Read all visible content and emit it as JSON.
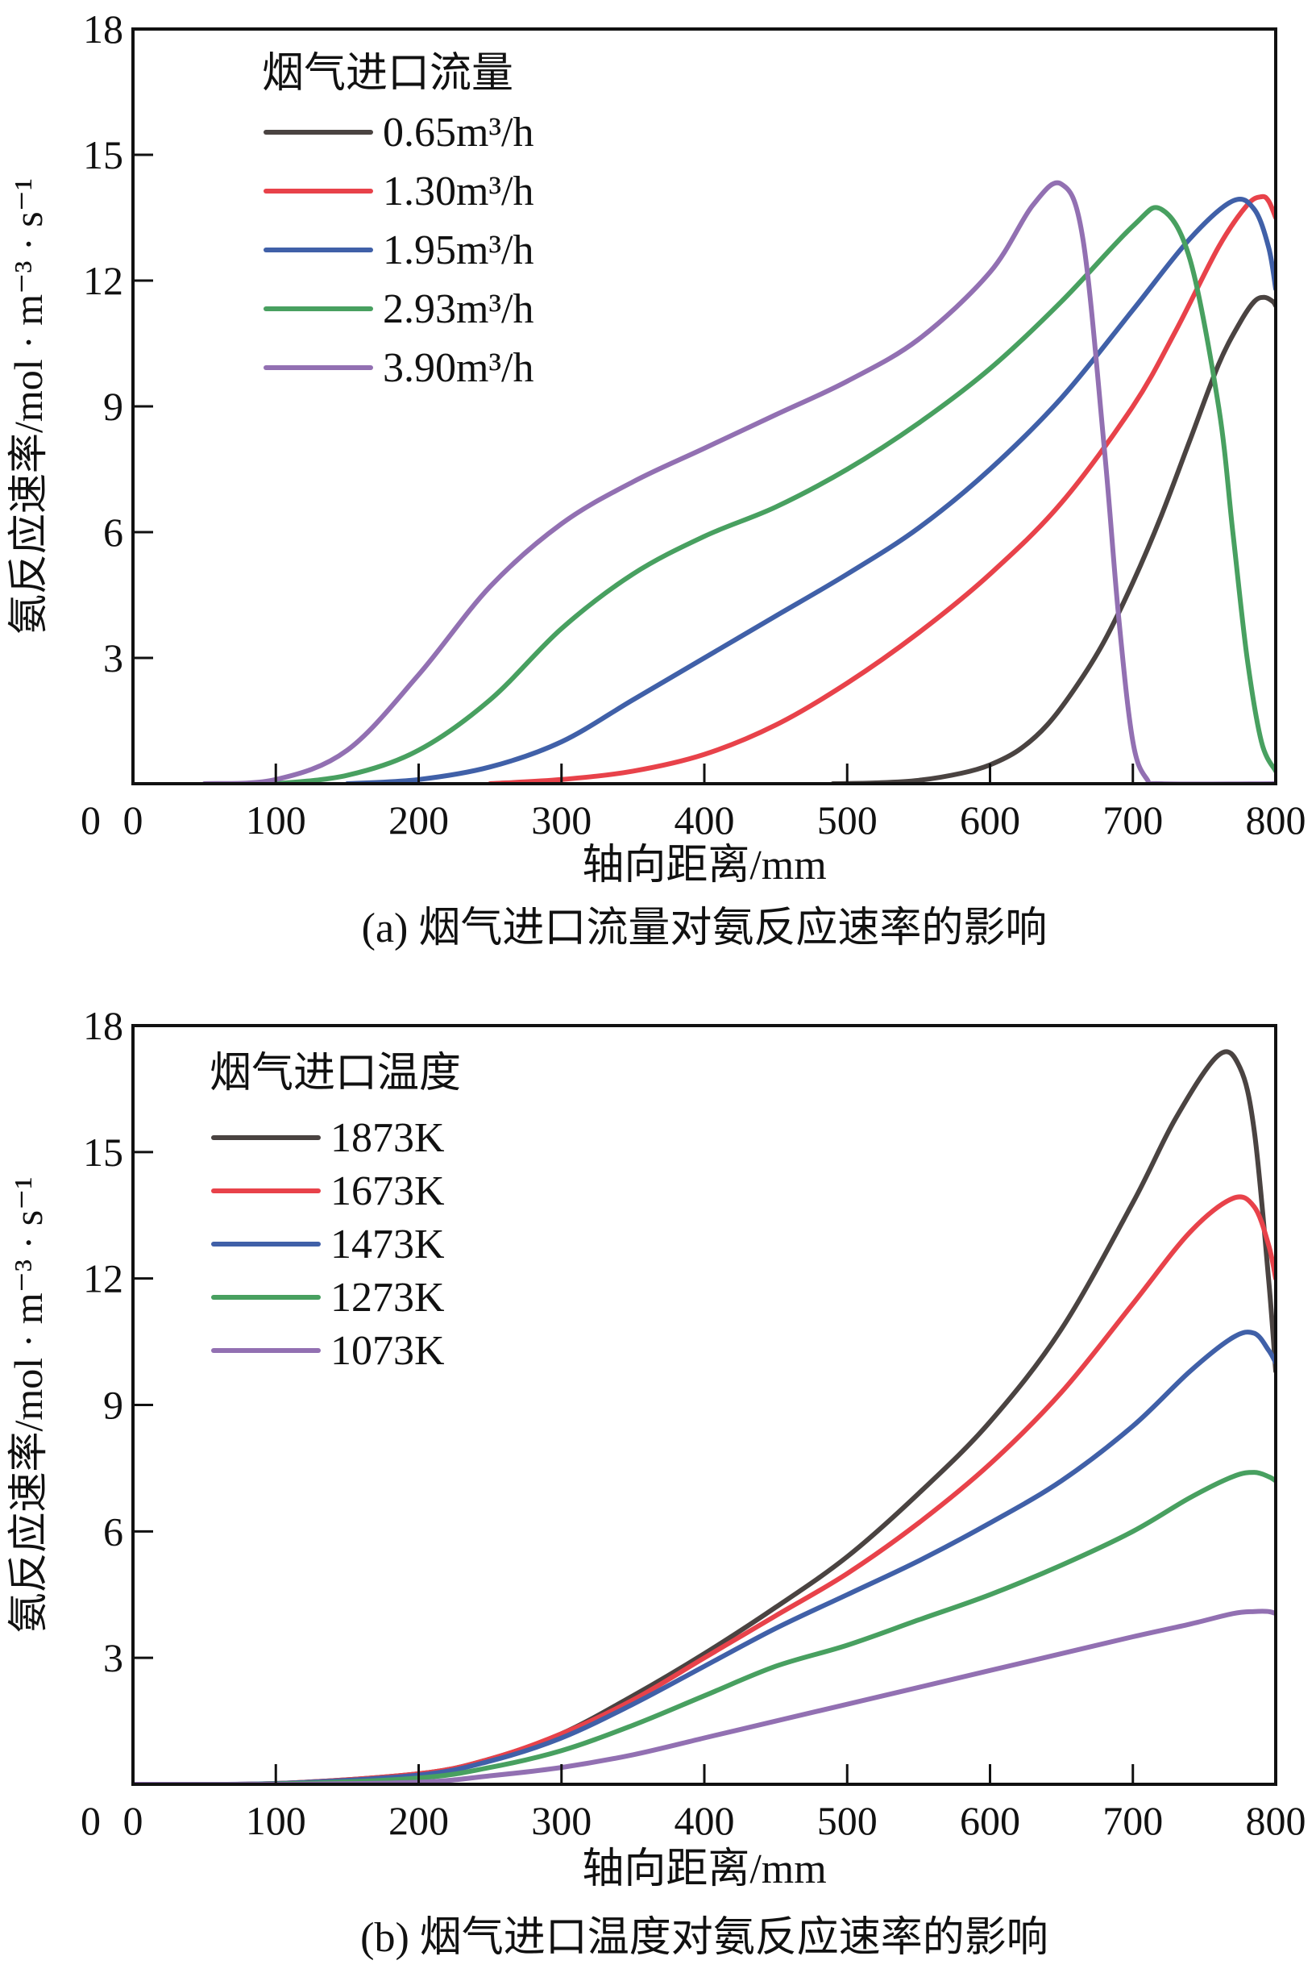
{
  "chart_data": [
    {
      "type": "line",
      "title": "",
      "caption": "(a) 烟气进口流量对氨反应速率的影响",
      "xlabel": "轴向距离/mm",
      "ylabel": "氨反应速率/mol · m⁻³ · s⁻¹",
      "xlim": [
        0,
        800
      ],
      "ylim": [
        0,
        18
      ],
      "xticks": [
        0,
        100,
        200,
        300,
        400,
        500,
        600,
        700,
        800
      ],
      "yticks": [
        3,
        6,
        9,
        12,
        15,
        18
      ],
      "ytick_zero_label": "0",
      "legend_title": "烟气进口流量",
      "legend_position": "top-left",
      "series": [
        {
          "name": "0.65m³/h",
          "color": "#4a4341",
          "x": [
            490,
            520,
            550,
            580,
            600,
            620,
            640,
            660,
            680,
            700,
            720,
            740,
            760,
            775,
            785,
            792,
            798,
            800
          ],
          "y": [
            0,
            0.02,
            0.08,
            0.25,
            0.45,
            0.8,
            1.4,
            2.3,
            3.4,
            4.8,
            6.4,
            8.2,
            10.0,
            11.0,
            11.5,
            11.6,
            11.5,
            11.4
          ]
        },
        {
          "name": "1.30m³/h",
          "color": "#e8424a",
          "x": [
            250,
            300,
            350,
            400,
            450,
            500,
            550,
            600,
            650,
            700,
            730,
            760,
            780,
            790,
            795,
            800
          ],
          "y": [
            0,
            0.1,
            0.3,
            0.7,
            1.4,
            2.4,
            3.6,
            5.0,
            6.7,
            9.0,
            10.8,
            12.8,
            13.8,
            14.0,
            13.9,
            13.5
          ]
        },
        {
          "name": "1.95m³/h",
          "color": "#4060a8",
          "x": [
            150,
            200,
            250,
            300,
            350,
            400,
            450,
            500,
            550,
            600,
            650,
            700,
            740,
            770,
            785,
            795,
            800
          ],
          "y": [
            0,
            0.1,
            0.4,
            1.0,
            2.0,
            3.0,
            4.0,
            5.0,
            6.1,
            7.5,
            9.2,
            11.3,
            13.0,
            13.9,
            13.7,
            12.8,
            11.8
          ]
        },
        {
          "name": "2.93m³/h",
          "color": "#48a060",
          "x": [
            100,
            150,
            200,
            250,
            300,
            350,
            400,
            450,
            500,
            550,
            600,
            650,
            700,
            720,
            740,
            760,
            770,
            780,
            790,
            800
          ],
          "y": [
            0,
            0.2,
            0.8,
            2.0,
            3.7,
            5.0,
            5.9,
            6.6,
            7.5,
            8.6,
            9.9,
            11.5,
            13.3,
            13.7,
            12.5,
            9.0,
            6.0,
            3.0,
            1.0,
            0.3
          ]
        },
        {
          "name": "3.90m³/h",
          "color": "#9270b2",
          "x": [
            50,
            100,
            150,
            200,
            250,
            300,
            350,
            400,
            450,
            500,
            550,
            600,
            630,
            650,
            665,
            680,
            690,
            700,
            710,
            720,
            800
          ],
          "y": [
            0,
            0.1,
            0.8,
            2.6,
            4.7,
            6.2,
            7.2,
            8.0,
            8.8,
            9.6,
            10.6,
            12.2,
            13.8,
            14.3,
            13.0,
            8.0,
            4.0,
            1.0,
            0.1,
            0,
            0
          ]
        }
      ]
    },
    {
      "type": "line",
      "title": "",
      "caption": "(b) 烟气进口温度对氨反应速率的影响",
      "xlabel": "轴向距离/mm",
      "ylabel": "氨反应速率/mol · m⁻³ · s⁻¹",
      "xlim": [
        0,
        800
      ],
      "ylim": [
        0,
        18
      ],
      "xticks": [
        0,
        100,
        200,
        300,
        400,
        500,
        600,
        700,
        800
      ],
      "yticks": [
        3,
        6,
        9,
        12,
        15,
        18
      ],
      "ytick_zero_label": "0",
      "legend_title": "烟气进口温度",
      "legend_position": "top-left",
      "series": [
        {
          "name": "1873K",
          "color": "#4a4341",
          "x": [
            0,
            100,
            200,
            250,
            300,
            350,
            400,
            450,
            500,
            550,
            600,
            650,
            700,
            730,
            760,
            775,
            785,
            795,
            800
          ],
          "y": [
            0,
            0.02,
            0.25,
            0.6,
            1.2,
            2.1,
            3.1,
            4.2,
            5.4,
            6.9,
            8.6,
            10.8,
            13.8,
            15.8,
            17.3,
            17.0,
            15.5,
            12.0,
            9.8
          ]
        },
        {
          "name": "1673K",
          "color": "#e8424a",
          "x": [
            0,
            100,
            200,
            250,
            300,
            350,
            400,
            450,
            500,
            550,
            600,
            650,
            700,
            740,
            770,
            785,
            795,
            800
          ],
          "y": [
            0,
            0.02,
            0.25,
            0.6,
            1.2,
            2.0,
            3.0,
            4.0,
            5.0,
            6.2,
            7.6,
            9.3,
            11.4,
            13.1,
            13.9,
            13.7,
            12.8,
            12.0
          ]
        },
        {
          "name": "1473K",
          "color": "#4060a8",
          "x": [
            0,
            100,
            200,
            250,
            300,
            350,
            400,
            450,
            500,
            550,
            600,
            650,
            700,
            740,
            770,
            785,
            795,
            800
          ],
          "y": [
            0,
            0.02,
            0.22,
            0.55,
            1.1,
            1.9,
            2.8,
            3.7,
            4.5,
            5.3,
            6.2,
            7.2,
            8.5,
            9.8,
            10.6,
            10.7,
            10.3,
            10.0
          ]
        },
        {
          "name": "1273K",
          "color": "#48a060",
          "x": [
            0,
            100,
            200,
            250,
            300,
            350,
            400,
            450,
            500,
            550,
            600,
            650,
            700,
            740,
            770,
            785,
            795,
            800
          ],
          "y": [
            0,
            0.01,
            0.15,
            0.4,
            0.8,
            1.4,
            2.1,
            2.8,
            3.3,
            3.9,
            4.5,
            5.2,
            6.0,
            6.8,
            7.3,
            7.4,
            7.3,
            7.2
          ]
        },
        {
          "name": "1073K",
          "color": "#9270b2",
          "x": [
            0,
            100,
            200,
            250,
            300,
            350,
            400,
            450,
            500,
            550,
            600,
            650,
            700,
            740,
            770,
            785,
            795,
            800
          ],
          "y": [
            0,
            0.0,
            0.05,
            0.2,
            0.4,
            0.7,
            1.1,
            1.5,
            1.9,
            2.3,
            2.7,
            3.1,
            3.5,
            3.8,
            4.05,
            4.1,
            4.1,
            4.05
          ]
        }
      ]
    }
  ]
}
